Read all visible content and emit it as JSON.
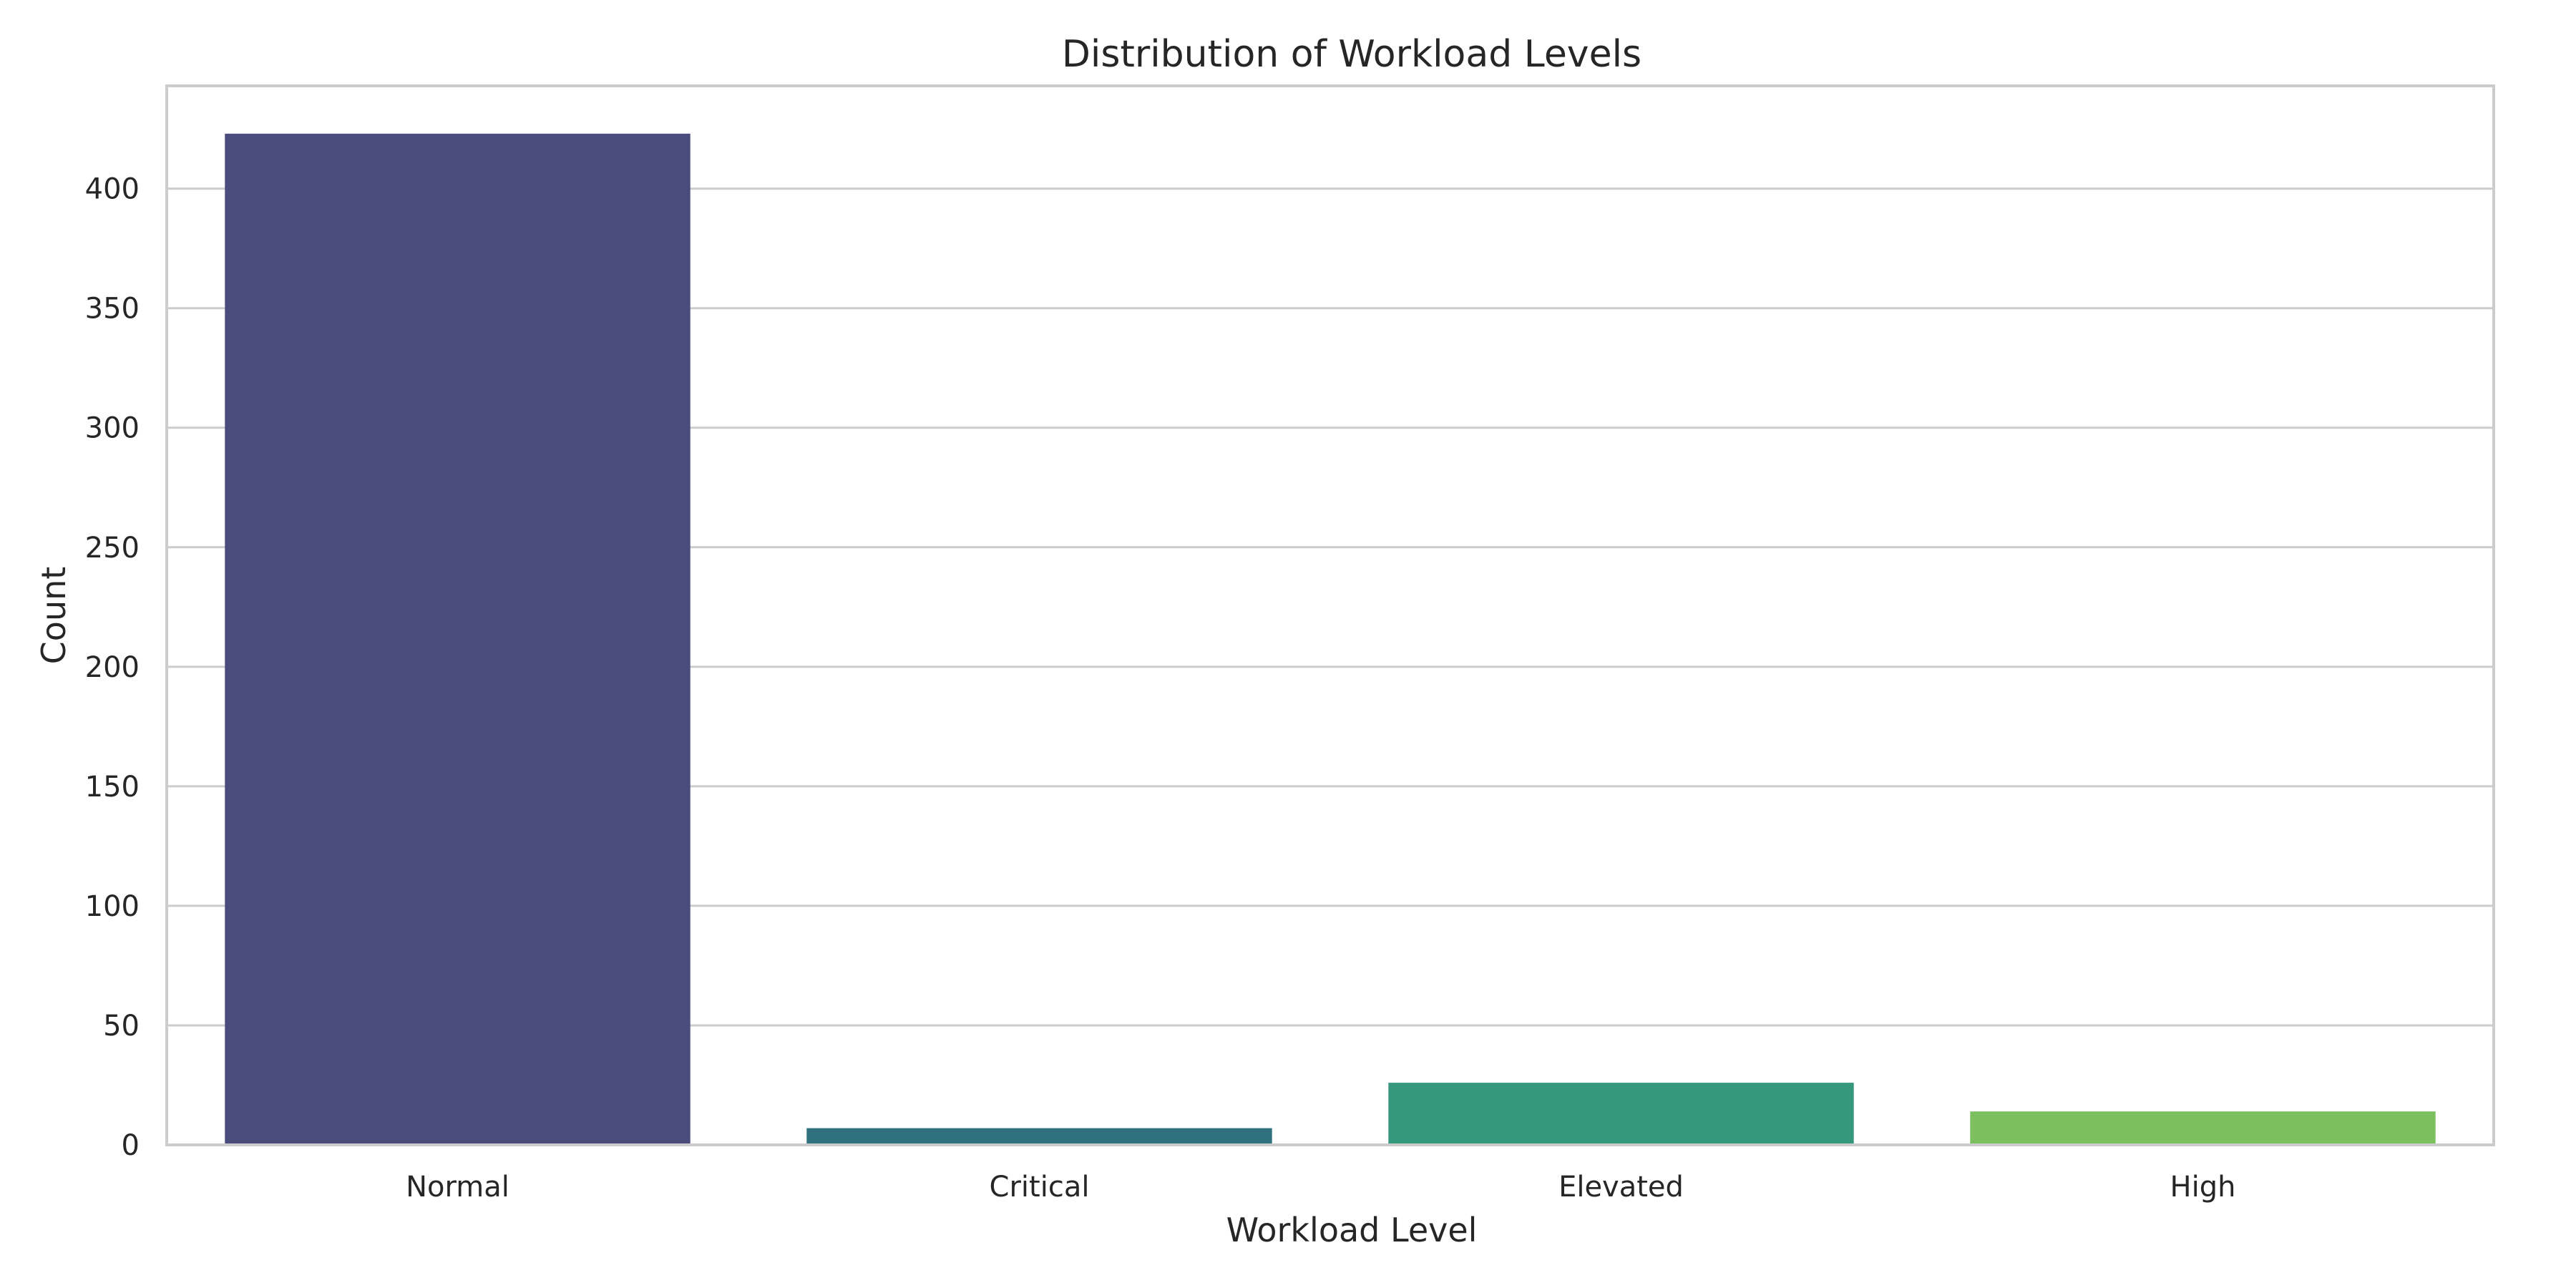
{
  "chart_data": {
    "type": "bar",
    "title": "Distribution of Workload Levels",
    "xlabel": "Workload Level",
    "ylabel": "Count",
    "categories": [
      "Normal",
      "Critical",
      "Elevated",
      "High"
    ],
    "values": [
      423,
      7,
      26,
      14
    ],
    "colors": [
      "#4a4c7c",
      "#30717f",
      "#35977c",
      "#7bbf5e"
    ],
    "ylim": [
      0,
      443
    ],
    "yticks": [
      0,
      50,
      100,
      150,
      200,
      250,
      300,
      350,
      400
    ],
    "grid": "y",
    "legend": "none"
  }
}
